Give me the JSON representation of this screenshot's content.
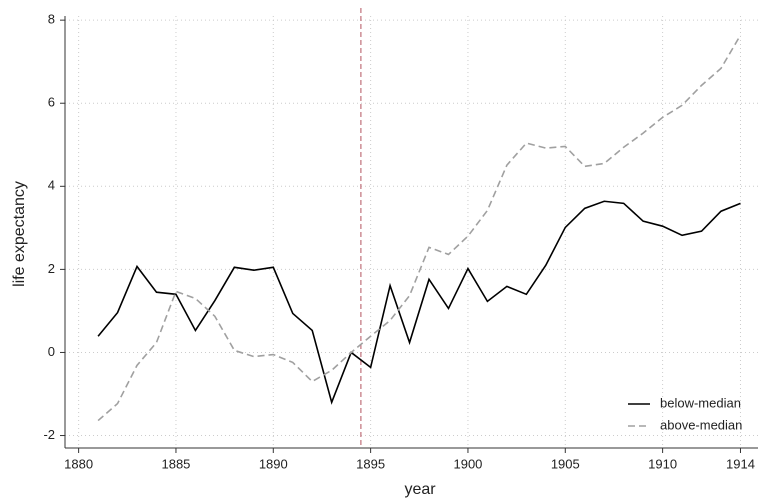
{
  "chart_data": {
    "type": "line",
    "xlabel": "year",
    "ylabel": "life expectancy",
    "x": [
      1881,
      1882,
      1883,
      1884,
      1885,
      1886,
      1887,
      1888,
      1889,
      1890,
      1891,
      1892,
      1893,
      1894,
      1895,
      1896,
      1897,
      1898,
      1899,
      1900,
      1901,
      1902,
      1903,
      1904,
      1905,
      1906,
      1907,
      1908,
      1909,
      1910,
      1911,
      1912,
      1913,
      1914
    ],
    "series": [
      {
        "name": "below-median",
        "color": "#000000",
        "dash": "solid",
        "values": [
          0.39,
          0.96,
          2.07,
          1.45,
          1.4,
          0.53,
          1.25,
          2.05,
          1.98,
          2.05,
          0.94,
          0.53,
          -1.2,
          0.0,
          -0.36,
          1.61,
          0.24,
          1.76,
          1.06,
          2.02,
          1.23,
          1.59,
          1.4,
          2.1,
          3.01,
          3.47,
          3.64,
          3.59,
          3.16,
          3.04,
          2.82,
          2.92,
          3.4,
          3.59
        ]
      },
      {
        "name": "above-median",
        "color": "#a0a0a0",
        "dash": "dashed",
        "values": [
          -1.64,
          -1.23,
          -0.31,
          0.24,
          1.47,
          1.3,
          0.87,
          0.05,
          -0.1,
          -0.05,
          -0.24,
          -0.7,
          -0.43,
          0.0,
          0.39,
          0.77,
          1.37,
          2.53,
          2.36,
          2.8,
          3.42,
          4.51,
          5.04,
          4.92,
          4.96,
          4.48,
          4.55,
          4.94,
          5.28,
          5.66,
          5.95,
          6.43,
          6.84,
          7.64
        ]
      }
    ],
    "vline": {
      "x": 1894.5,
      "color": "#c0707a"
    },
    "xlim": [
      1879.3,
      1914.9
    ],
    "xticks": [
      1880,
      1885,
      1890,
      1895,
      1900,
      1905,
      1910,
      1914
    ],
    "ylim": [
      -2.3,
      8.1
    ],
    "yticks": [
      -2,
      0,
      2,
      4,
      6,
      8
    ],
    "grid": true,
    "legend": "lower right"
  }
}
